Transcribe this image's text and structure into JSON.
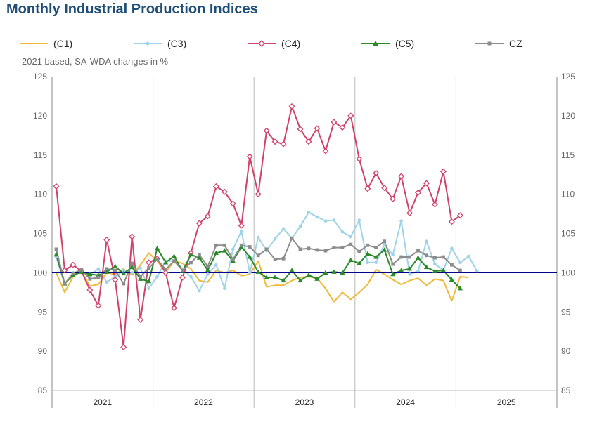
{
  "chart_data": {
    "type": "line",
    "title": "Monthly Industrial Production Indices",
    "subtitle": "2021 based, SA-WDA changes in %",
    "ylim": [
      85,
      125
    ],
    "yticks": [
      85,
      90,
      95,
      100,
      105,
      110,
      115,
      120,
      125
    ],
    "years": [
      "2021",
      "2022",
      "2023",
      "2024",
      "2025"
    ],
    "reference_line": 100,
    "grid": "vertical year separators",
    "legend_position": "top",
    "series": [
      {
        "name": "(C1)",
        "color": "#f0b93a",
        "marker": "none",
        "values": [
          100.0,
          97.5,
          99.5,
          100.2,
          98.3,
          98.5,
          100.0,
          99.8,
          100.5,
          99.7,
          101.0,
          102.5,
          101.5,
          100.0,
          101.5,
          101.2,
          100.5,
          99.0,
          98.8,
          100.3,
          100.0,
          100.3,
          99.6,
          99.8,
          101.5,
          98.2,
          98.4,
          98.4,
          99.0,
          99.4,
          99.5,
          99.3,
          98.0,
          96.3,
          97.5,
          96.6,
          97.5,
          98.5,
          100.4,
          99.8,
          99.1,
          98.5,
          99.0,
          99.3,
          98.4,
          99.2,
          99.0,
          96.4,
          99.5,
          99.4
        ]
      },
      {
        "name": "(C3)",
        "color": "#9fd3e8",
        "marker": "dot",
        "values": [
          102.0,
          98.5,
          100.0,
          100.2,
          99.7,
          100.5,
          98.8,
          99.5,
          100.3,
          100.0,
          100.6,
          98.0,
          99.5,
          101.5,
          101.5,
          100.5,
          99.5,
          97.7,
          99.8,
          101.0,
          98.0,
          103.0,
          105.3,
          100.0,
          104.5,
          102.8,
          104.3,
          105.6,
          104.4,
          105.9,
          107.7,
          107.1,
          106.6,
          106.7,
          105.2,
          104.6,
          106.7,
          101.3,
          101.3,
          103.6,
          102.3,
          106.6,
          99.8,
          100.2,
          104.0,
          101.1,
          100.3,
          103.1,
          101.3,
          102.1,
          100.2
        ]
      },
      {
        "name": "(C4)",
        "color": "#d0426a",
        "marker": "diamond",
        "values": [
          111.0,
          100.3,
          101.0,
          100.2,
          97.8,
          95.8,
          104.2,
          99.1,
          90.5,
          104.6,
          94.0,
          101.3,
          101.8,
          100.0,
          95.5,
          99.4,
          102.5,
          106.3,
          107.2,
          111.0,
          110.3,
          108.8,
          106.0,
          114.8,
          110.0,
          118.1,
          116.7,
          116.4,
          121.2,
          118.3,
          116.7,
          118.4,
          115.5,
          119.2,
          118.5,
          120.0,
          114.5,
          110.7,
          112.7,
          110.8,
          109.4,
          112.3,
          107.6,
          110.2,
          111.4,
          108.7,
          112.9,
          106.5,
          107.3
        ]
      },
      {
        "name": "(C5)",
        "color": "#2a8a2a",
        "marker": "triangle",
        "values": [
          102.3,
          98.6,
          99.7,
          100.1,
          99.8,
          99.7,
          100.1,
          100.8,
          99.9,
          100.7,
          99.2,
          98.9,
          103.1,
          101.3,
          102.1,
          100.2,
          102.3,
          101.9,
          100.3,
          102.5,
          102.8,
          101.5,
          103.3,
          102.0,
          100.1,
          99.4,
          99.4,
          99.0,
          100.3,
          99.0,
          99.7,
          99.2,
          100.0,
          100.1,
          100.0,
          101.6,
          101.2,
          102.4,
          102.0,
          102.9,
          99.8,
          100.3,
          100.5,
          101.9,
          100.7,
          100.2,
          100.3,
          99.1,
          98.0
        ]
      },
      {
        "name": "CZ",
        "color": "#8c8c8c",
        "marker": "square",
        "values": [
          103.0,
          98.6,
          99.9,
          100.4,
          99.2,
          99.4,
          100.5,
          100.3,
          98.6,
          101.2,
          99.5,
          100.6,
          101.7,
          100.4,
          101.5,
          100.3,
          101.3,
          102.3,
          100.8,
          103.5,
          103.5,
          101.7,
          103.5,
          103.3,
          102.2,
          103.0,
          101.7,
          101.8,
          104.4,
          103.0,
          103.1,
          102.9,
          102.8,
          103.2,
          103.2,
          103.6,
          102.7,
          103.5,
          103.2,
          104.0,
          101.1,
          102.0,
          102.0,
          102.8,
          102.2,
          101.9,
          102.0,
          101.0,
          100.3
        ]
      }
    ]
  }
}
